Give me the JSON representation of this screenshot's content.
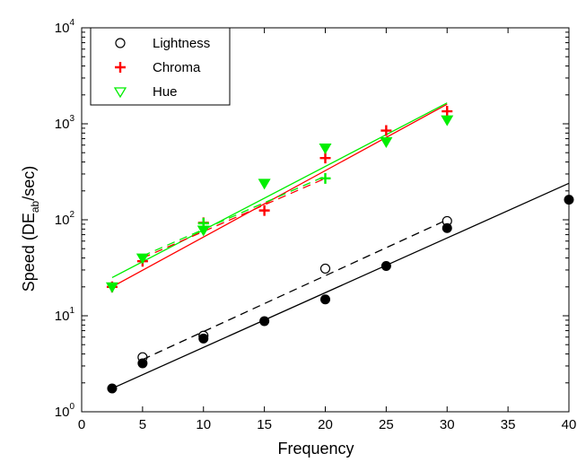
{
  "chart_data": {
    "type": "scatter",
    "xlabel": "Frequency",
    "ylabel": {
      "main": "Speed (DE",
      "sub": "ab",
      "tail": "/sec)"
    },
    "xlim": [
      0,
      40
    ],
    "ylim": [
      1,
      10000
    ],
    "yscale": "log",
    "x_ticks": [
      0,
      5,
      10,
      15,
      20,
      25,
      30,
      35,
      40
    ],
    "x_tick_labels": [
      "0",
      "5",
      "10",
      "15",
      "20",
      "25",
      "30",
      "35",
      "40"
    ],
    "y_ticks": [
      1,
      10,
      100,
      1000,
      10000
    ],
    "y_tick_labels": [
      {
        "base": "10",
        "exp": "0"
      },
      {
        "base": "10",
        "exp": "1"
      },
      {
        "base": "10",
        "exp": "2"
      },
      {
        "base": "10",
        "exp": "3"
      },
      {
        "base": "10",
        "exp": "4"
      }
    ],
    "legend_position": "top-left",
    "series": [
      {
        "name": "Lightness",
        "marker": "open-circle",
        "color": "#000000",
        "points": [
          [
            5,
            3.7
          ],
          [
            10,
            6.2
          ],
          [
            20,
            31
          ],
          [
            30,
            97
          ]
        ],
        "fit": {
          "style": "dashed",
          "from": [
            5,
            3.5
          ],
          "to": [
            30,
            100
          ]
        }
      },
      {
        "name": "Chroma",
        "marker": "plus",
        "color": "#ff0000",
        "points": [
          [
            2.5,
            20
          ],
          [
            5,
            37
          ],
          [
            10,
            93
          ],
          [
            15,
            125
          ],
          [
            20,
            440
          ],
          [
            25,
            850
          ],
          [
            30,
            1350
          ]
        ],
        "fit": {
          "style": "solid",
          "from": [
            2.5,
            20
          ],
          "to": [
            30,
            1600
          ]
        }
      },
      {
        "name": "Hue",
        "marker": "open-triangle-down",
        "color": "#00ee00",
        "points": [
          [
            2.5,
            20
          ],
          [
            5,
            40
          ],
          [
            10,
            78
          ],
          [
            15,
            240
          ],
          [
            20,
            560
          ],
          [
            25,
            650
          ],
          [
            30,
            1100
          ]
        ],
        "fit": {
          "style": "solid",
          "from": [
            2.5,
            25
          ],
          "to": [
            30,
            1650
          ]
        }
      },
      {
        "marker": "filled-circle",
        "color": "#000000",
        "points": [
          [
            2.5,
            1.75
          ],
          [
            5,
            3.2
          ],
          [
            10,
            5.8
          ],
          [
            15,
            8.8
          ],
          [
            20,
            14.8
          ],
          [
            25,
            33
          ],
          [
            30,
            82
          ],
          [
            40,
            162
          ]
        ],
        "fit": {
          "style": "solid",
          "from": [
            2.5,
            1.75
          ],
          "to": [
            40,
            240
          ]
        }
      }
    ],
    "extra_fits": [
      {
        "style": "dashed",
        "color": "#ff0000",
        "from": [
          5,
          40
        ],
        "to": [
          20,
          270
        ]
      },
      {
        "style": "dashed",
        "color": "#00ee00",
        "from": [
          5,
          42
        ],
        "to": [
          20,
          285
        ]
      }
    ],
    "extra_markers": [
      {
        "marker": "plus",
        "color": "#00ee00",
        "x": 20,
        "y": 270
      },
      {
        "marker": "plus",
        "color": "#00ee00",
        "x": 10,
        "y": 92
      }
    ]
  }
}
